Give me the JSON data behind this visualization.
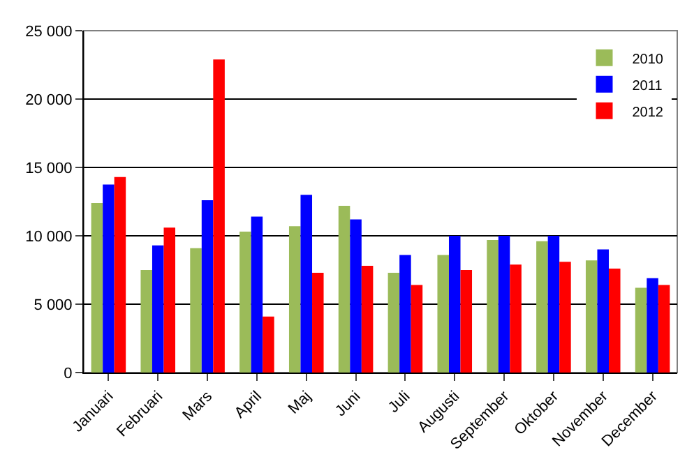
{
  "chart_data": {
    "type": "bar",
    "categories": [
      "Januari",
      "Februari",
      "Mars",
      "April",
      "Maj",
      "Juni",
      "Juli",
      "Augusti",
      "September",
      "Oktober",
      "November",
      "December"
    ],
    "series": [
      {
        "name": "2010",
        "color": "#9bbb59",
        "values": [
          12400,
          7500,
          9100,
          10300,
          10700,
          12200,
          7300,
          8600,
          9700,
          9600,
          8200,
          6200
        ]
      },
      {
        "name": "2011",
        "color": "#0000ff",
        "values": [
          13750,
          9300,
          12600,
          11400,
          13000,
          11200,
          8600,
          10000,
          10000,
          10000,
          9000,
          6900
        ]
      },
      {
        "name": "2012",
        "color": "#ff0000",
        "values": [
          14300,
          10600,
          22900,
          4100,
          7300,
          7800,
          6400,
          7500,
          7900,
          8100,
          7600,
          6400
        ]
      }
    ],
    "ylim": [
      0,
      25000
    ],
    "yticks": [
      0,
      {
        "value": 5000,
        "label": "5 000"
      },
      {
        "value": 10000,
        "label": "10 000"
      },
      {
        "value": 15000,
        "label": "15 000"
      },
      {
        "value": 20000,
        "label": "20 000"
      },
      {
        "value": 25000,
        "label": "25 000"
      }
    ],
    "grid": "y",
    "legend": "top right"
  }
}
